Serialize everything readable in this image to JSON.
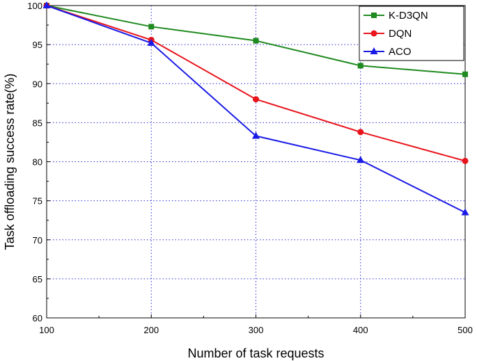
{
  "chart_data": {
    "type": "line",
    "title": "",
    "xlabel": "Number of task requests",
    "ylabel": "Task offloading success rate(%)",
    "x": [
      100,
      200,
      300,
      400,
      500
    ],
    "x_tick_labels": [
      "100",
      "200",
      "300",
      "400",
      "500"
    ],
    "y_tick_labels": [
      "60",
      "65",
      "70",
      "75",
      "80",
      "85",
      "90",
      "95",
      "100"
    ],
    "xlim": [
      100,
      500
    ],
    "ylim": [
      60,
      100
    ],
    "grid": "dotted blue at major ticks",
    "legend_position": "top-right",
    "series": [
      {
        "name": "K-D3QN",
        "color": "#1f8a1f",
        "marker": "square",
        "values": [
          100,
          97.3,
          95.5,
          92.3,
          91.2
        ]
      },
      {
        "name": "DQN",
        "color": "#e8141c",
        "marker": "circle",
        "values": [
          100,
          95.6,
          88.0,
          83.8,
          80.1
        ]
      },
      {
        "name": "ACO",
        "color": "#1a1ae6",
        "marker": "triangle",
        "values": [
          100,
          95.2,
          83.3,
          80.2,
          73.5
        ]
      }
    ]
  }
}
